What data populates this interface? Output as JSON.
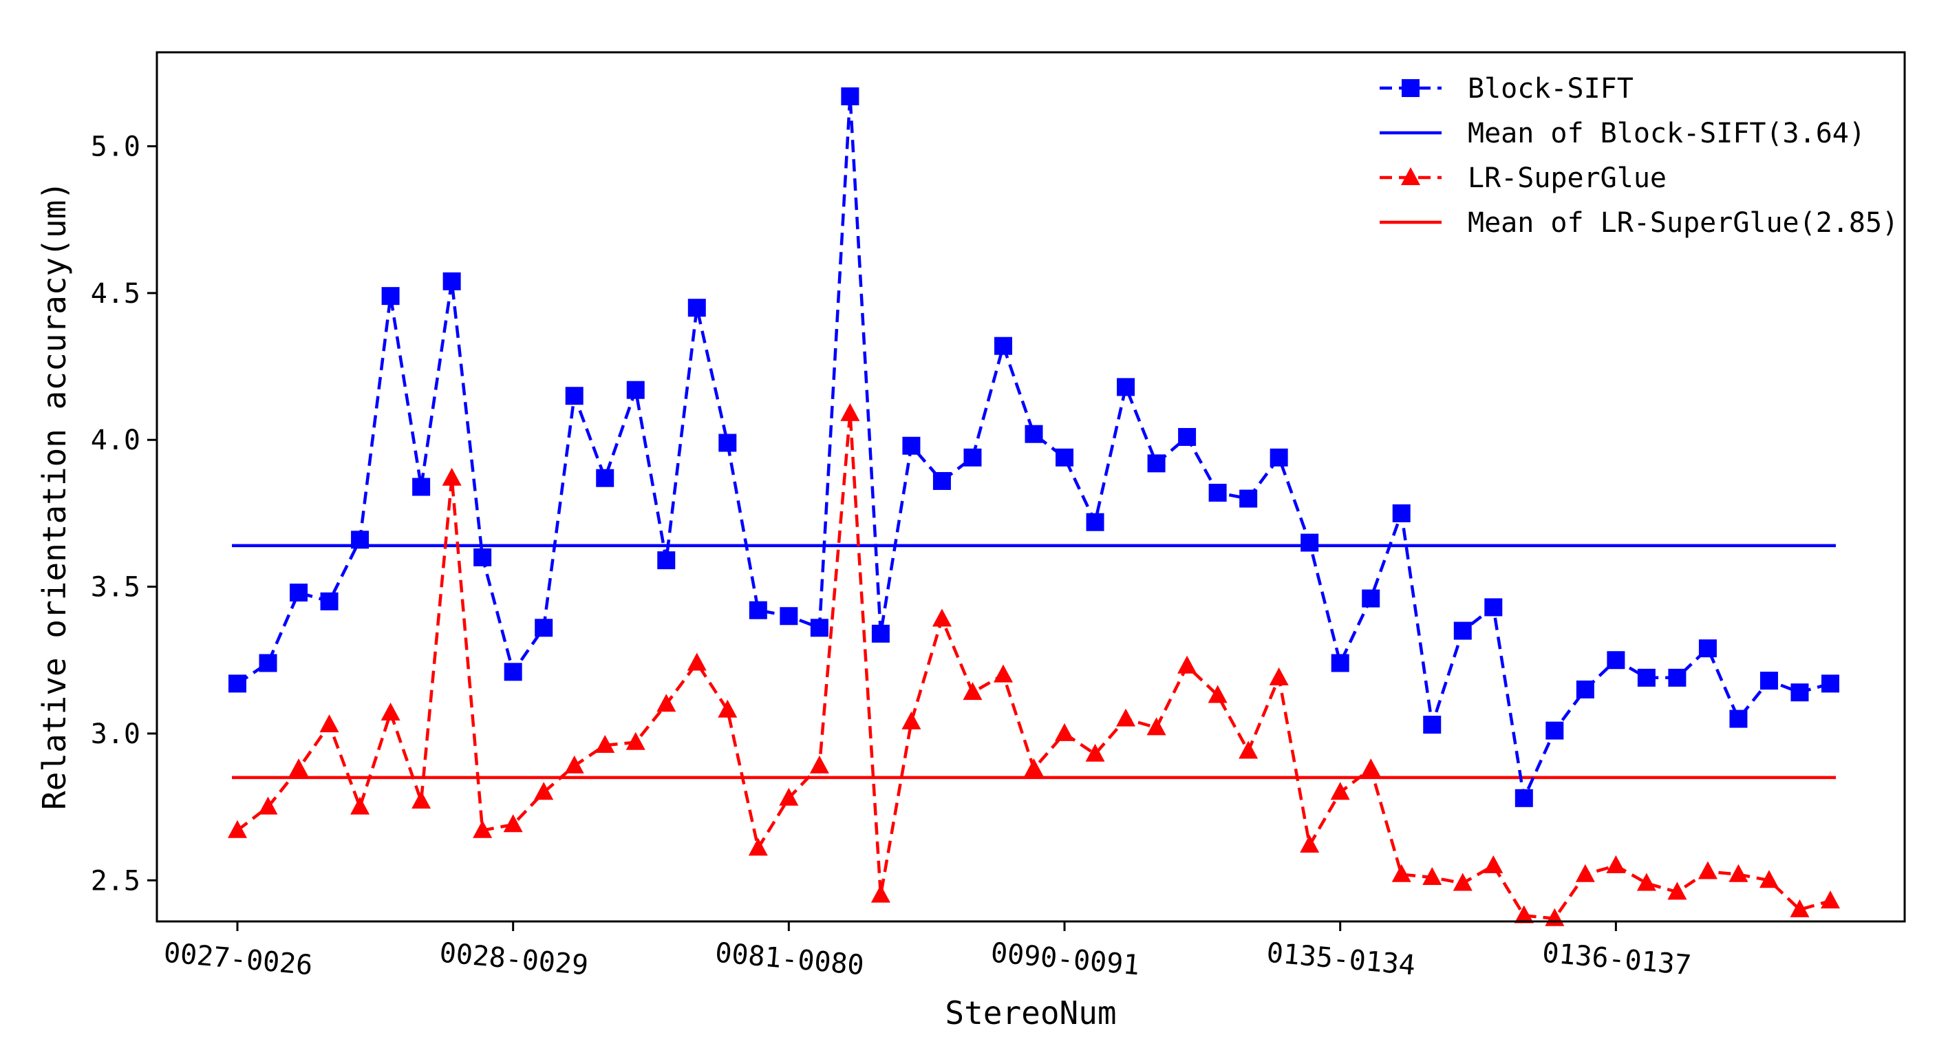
{
  "chart_data": {
    "type": "line",
    "title": "",
    "xlabel": "StereoNum",
    "ylabel": "Relative orientation accuracy(um)",
    "ylim": [
      2.36,
      5.32
    ],
    "yticks": [
      2.5,
      3.0,
      3.5,
      4.0,
      4.5,
      5.0
    ],
    "ytick_labels": [
      "2.5",
      "3.0",
      "3.5",
      "4.0",
      "4.5",
      "5.0"
    ],
    "x_count": 53,
    "xtick_indices": [
      0,
      9,
      18,
      27,
      36,
      45
    ],
    "xtick_labels": [
      "0027-0026",
      "0028-0029",
      "0081-0080",
      "0090-0091",
      "0135-0134",
      "0136-0137"
    ],
    "legend_position": "top-right",
    "series": [
      {
        "name": "Block-SIFT",
        "color": "#0000ff",
        "style": "dashed",
        "marker": "square",
        "values": [
          3.17,
          3.24,
          3.48,
          3.45,
          3.66,
          4.49,
          3.84,
          4.54,
          3.6,
          3.21,
          3.36,
          4.15,
          3.87,
          4.17,
          3.59,
          4.45,
          3.99,
          3.42,
          3.4,
          3.36,
          5.17,
          3.34,
          3.98,
          3.86,
          3.94,
          4.32,
          4.02,
          3.94,
          3.72,
          4.18,
          3.92,
          4.01,
          3.82,
          3.8,
          3.94,
          3.65,
          3.24,
          3.46,
          3.75,
          3.03,
          3.35,
          3.43,
          2.78,
          3.01,
          3.15,
          3.25,
          3.19,
          3.19,
          3.29,
          3.05,
          3.18,
          3.14,
          3.17
        ]
      },
      {
        "name": "Mean of Block-SIFT(3.64)",
        "color": "#0000ff",
        "style": "solid",
        "marker": "none",
        "value": 3.64
      },
      {
        "name": "LR-SuperGlue",
        "color": "#ff0000",
        "style": "dashed",
        "marker": "triangle",
        "values": [
          2.67,
          2.75,
          2.88,
          3.03,
          2.75,
          3.07,
          2.77,
          3.87,
          2.67,
          2.69,
          2.8,
          2.89,
          2.96,
          2.97,
          3.1,
          3.24,
          3.08,
          2.61,
          2.78,
          2.89,
          4.09,
          2.45,
          3.04,
          3.39,
          3.14,
          3.2,
          2.88,
          3.0,
          2.93,
          3.05,
          3.02,
          3.23,
          3.13,
          2.94,
          3.19,
          2.62,
          2.8,
          2.88,
          2.52,
          2.51,
          2.49,
          2.55,
          2.38,
          2.37,
          2.52,
          2.55,
          2.49,
          2.46,
          2.53,
          2.52,
          2.5,
          2.4,
          2.43
        ]
      },
      {
        "name": "Mean of LR-SuperGlue(2.85)",
        "color": "#ff0000",
        "style": "solid",
        "marker": "none",
        "value": 2.85
      }
    ]
  }
}
